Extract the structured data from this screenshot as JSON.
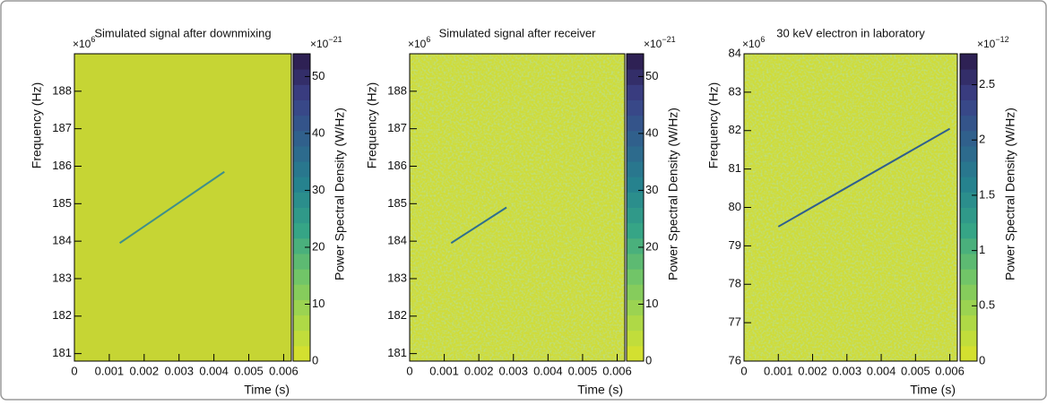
{
  "chart_data": [
    {
      "type": "heatmap",
      "title": "Simulated signal after downmixing",
      "xlabel": "Time (s)",
      "ylabel": "Frequency (Hz)",
      "colorbar_label": "Power Spectral Density (W/Hz)",
      "y_multiplier": {
        "text": "×10",
        "exponent": "6"
      },
      "colorbar_multiplier": {
        "text": "×10",
        "exponent": "−21"
      },
      "xlim": [
        0,
        0.00622
      ],
      "xticks": [
        0,
        0.001,
        0.002,
        0.003,
        0.004,
        0.005,
        0.006
      ],
      "ylim": [
        180.8,
        189
      ],
      "yticks": [
        181,
        182,
        183,
        184,
        185,
        186,
        187,
        188
      ],
      "clim": [
        0,
        54
      ],
      "cticks": [
        0,
        10,
        20,
        30,
        40,
        50
      ],
      "track": {
        "x": [
          0.0013,
          0.0043
        ],
        "y": [
          183.95,
          185.85
        ]
      },
      "track_color": "#3f8f8a",
      "background": "#c6d534",
      "noise": false
    },
    {
      "type": "heatmap",
      "title": "Simulated signal after receiver",
      "xlabel": "Time (s)",
      "ylabel": "Frequency (Hz)",
      "colorbar_label": "Power Spectral Density (W/Hz)",
      "y_multiplier": {
        "text": "×10",
        "exponent": "6"
      },
      "colorbar_multiplier": {
        "text": "×10",
        "exponent": "−21"
      },
      "xlim": [
        0,
        0.00622
      ],
      "xticks": [
        0,
        0.001,
        0.002,
        0.003,
        0.004,
        0.005,
        0.006
      ],
      "ylim": [
        180.8,
        189
      ],
      "yticks": [
        181,
        182,
        183,
        184,
        185,
        186,
        187,
        188
      ],
      "clim": [
        0,
        54
      ],
      "cticks": [
        0,
        10,
        20,
        30,
        40,
        50
      ],
      "track": {
        "x": [
          0.0012,
          0.0028
        ],
        "y": [
          183.95,
          184.9
        ]
      },
      "track_color": "#2f6f8e",
      "background": "#cfdc3a",
      "noise": true
    },
    {
      "type": "heatmap",
      "title": "30 keV electron in laboratory",
      "xlabel": "Time (s)",
      "ylabel": "Frequency (Hz)",
      "colorbar_label": "Power Spectral Density (W/Hz)",
      "y_multiplier": {
        "text": "×10",
        "exponent": "6"
      },
      "colorbar_multiplier": {
        "text": "×10",
        "exponent": "−12"
      },
      "xlim": [
        0,
        0.00622
      ],
      "xticks": [
        0,
        0.001,
        0.002,
        0.003,
        0.004,
        0.005,
        0.006
      ],
      "ylim": [
        76,
        84
      ],
      "yticks": [
        76,
        77,
        78,
        79,
        80,
        81,
        82,
        83,
        84
      ],
      "clim": [
        0,
        2.78
      ],
      "cticks": [
        0,
        0.5,
        1,
        1.5,
        2,
        2.5
      ],
      "track": {
        "x": [
          0.001,
          0.006
        ],
        "y": [
          79.5,
          82.05
        ]
      },
      "track_color": "#2f5f8e",
      "background": "#cfdc3a",
      "noise": true
    }
  ],
  "colormap": [
    "#dce22a",
    "#a9d84a",
    "#6cc36a",
    "#35a487",
    "#26838e",
    "#2f628d",
    "#3b4186",
    "#2b1a4a"
  ]
}
